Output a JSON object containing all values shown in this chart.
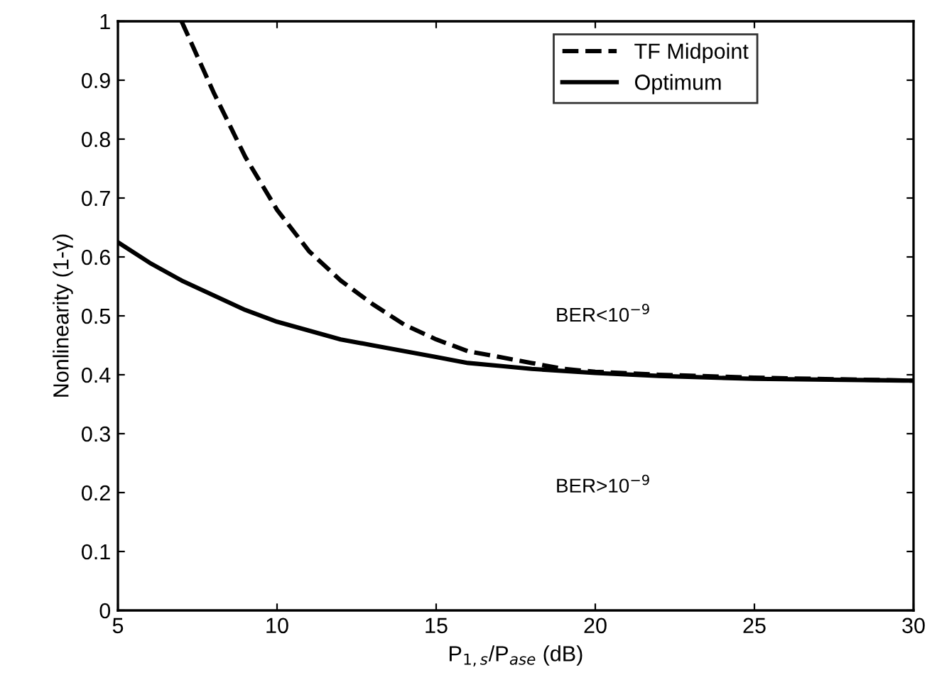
{
  "chart_data": {
    "type": "line",
    "xlabel": "P$_{1,s}$/P$_{ase}$ (dB)",
    "ylabel": "Nonlinearity (1-γ)",
    "xlim": [
      5,
      30
    ],
    "ylim": [
      0,
      1
    ],
    "xticks": [
      5,
      10,
      15,
      20,
      25,
      30
    ],
    "yticks": [
      0,
      0.1,
      0.2,
      0.3,
      0.4,
      0.5,
      0.6,
      0.7,
      0.8,
      0.9,
      1
    ],
    "grid": false,
    "legend": "top right",
    "annotations": [
      "BER<10$^{−9}$",
      "BER>10$^{−9}$"
    ],
    "series": [
      {
        "name": "TF Midpoint",
        "color": "#000000",
        "line_style": "dashed",
        "x": [
          7,
          8,
          9,
          10,
          11,
          12,
          13,
          14,
          15,
          16,
          17,
          18,
          19,
          20,
          22,
          25,
          30
        ],
        "values": [
          1.0,
          0.88,
          0.77,
          0.68,
          0.61,
          0.56,
          0.52,
          0.485,
          0.46,
          0.44,
          0.43,
          0.42,
          0.41,
          0.405,
          0.4,
          0.395,
          0.39
        ]
      },
      {
        "name": "Optimum",
        "color": "#000000",
        "line_style": "solid",
        "x": [
          5,
          6,
          7,
          8,
          9,
          10,
          11,
          12,
          13,
          14,
          15,
          16,
          17,
          18,
          20,
          22,
          25,
          30
        ],
        "values": [
          0.625,
          0.59,
          0.56,
          0.535,
          0.51,
          0.49,
          0.475,
          0.46,
          0.45,
          0.44,
          0.43,
          0.42,
          0.415,
          0.41,
          0.403,
          0.398,
          0.393,
          0.39
        ]
      }
    ]
  }
}
